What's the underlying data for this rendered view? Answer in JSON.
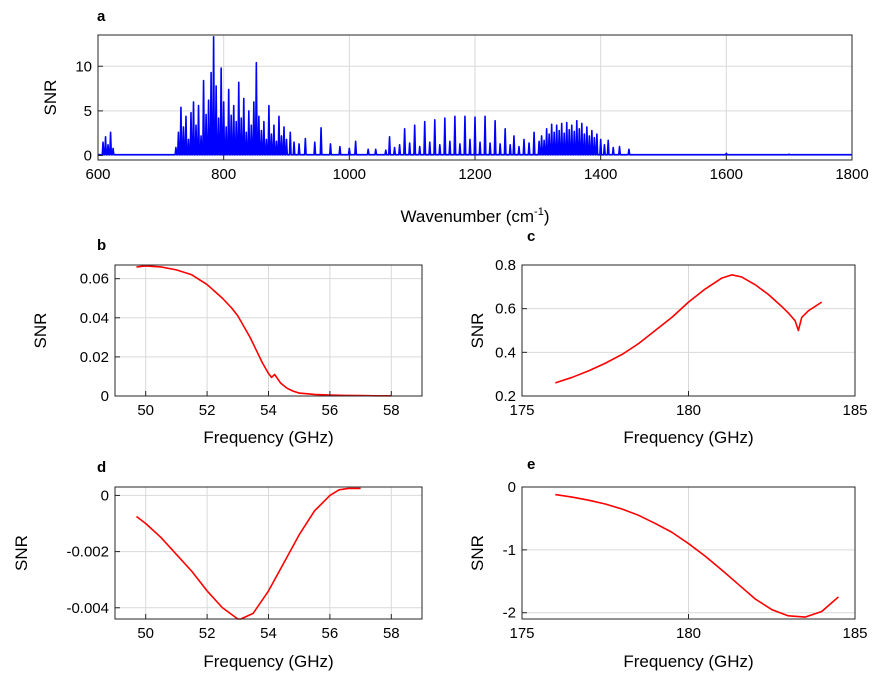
{
  "chart_data": [
    {
      "panel": "a",
      "type": "line",
      "xlabel": "Wavenumber (cm",
      "xlabel_sup": "-1",
      "xlabel_end": ")",
      "ylabel": "SNR",
      "xlim": [
        600,
        1800
      ],
      "ylim": [
        -0.5,
        13.5
      ],
      "xticks": [
        600,
        800,
        1000,
        1200,
        1400,
        1600,
        1800
      ],
      "yticks": [
        0,
        5,
        10
      ],
      "grid": true,
      "color": "#0000ff",
      "baseline": 0.1,
      "peaks": [
        [
          608,
          1.5
        ],
        [
          612,
          2.1
        ],
        [
          616,
          1.2
        ],
        [
          620,
          2.6
        ],
        [
          624,
          0.8
        ],
        [
          724,
          0.9
        ],
        [
          728,
          2.6
        ],
        [
          732,
          5.4
        ],
        [
          736,
          3.2
        ],
        [
          740,
          4.4
        ],
        [
          744,
          1.8
        ],
        [
          748,
          4.8
        ],
        [
          752,
          6.0
        ],
        [
          756,
          3.4
        ],
        [
          760,
          5.6
        ],
        [
          764,
          2.2
        ],
        [
          768,
          8.4
        ],
        [
          772,
          4.6
        ],
        [
          776,
          6.2
        ],
        [
          780,
          9.3
        ],
        [
          784,
          13.3
        ],
        [
          788,
          7.8
        ],
        [
          792,
          4.2
        ],
        [
          796,
          9.8
        ],
        [
          800,
          6.0
        ],
        [
          804,
          3.2
        ],
        [
          808,
          7.4
        ],
        [
          812,
          4.5
        ],
        [
          816,
          5.6
        ],
        [
          820,
          3.8
        ],
        [
          824,
          8.2
        ],
        [
          828,
          4.2
        ],
        [
          832,
          6.4
        ],
        [
          836,
          2.6
        ],
        [
          840,
          5.0
        ],
        [
          844,
          3.4
        ],
        [
          848,
          6.0
        ],
        [
          852,
          10.4
        ],
        [
          856,
          4.4
        ],
        [
          860,
          2.8
        ],
        [
          864,
          3.8
        ],
        [
          868,
          1.8
        ],
        [
          872,
          5.6
        ],
        [
          876,
          2.4
        ],
        [
          880,
          3.4
        ],
        [
          884,
          1.6
        ],
        [
          888,
          4.4
        ],
        [
          892,
          2.2
        ],
        [
          896,
          3.2
        ],
        [
          900,
          1.8
        ],
        [
          906,
          2.6
        ],
        [
          912,
          1.5
        ],
        [
          920,
          1.3
        ],
        [
          930,
          1.9
        ],
        [
          945,
          1.5
        ],
        [
          955,
          3.1
        ],
        [
          970,
          1.3
        ],
        [
          985,
          1.0
        ],
        [
          1000,
          0.8
        ],
        [
          1010,
          1.6
        ],
        [
          1030,
          0.7
        ],
        [
          1042,
          0.7
        ],
        [
          1058,
          0.6
        ],
        [
          1064,
          2.1
        ],
        [
          1072,
          0.9
        ],
        [
          1080,
          1.2
        ],
        [
          1088,
          3.0
        ],
        [
          1096,
          1.4
        ],
        [
          1104,
          3.4
        ],
        [
          1112,
          1.0
        ],
        [
          1120,
          3.8
        ],
        [
          1128,
          1.5
        ],
        [
          1136,
          4.0
        ],
        [
          1144,
          1.2
        ],
        [
          1152,
          4.2
        ],
        [
          1160,
          1.6
        ],
        [
          1168,
          4.4
        ],
        [
          1176,
          1.3
        ],
        [
          1184,
          4.4
        ],
        [
          1192,
          1.8
        ],
        [
          1200,
          4.3
        ],
        [
          1208,
          1.5
        ],
        [
          1216,
          4.4
        ],
        [
          1224,
          1.4
        ],
        [
          1232,
          3.9
        ],
        [
          1240,
          1.3
        ],
        [
          1248,
          3.0
        ],
        [
          1256,
          1.2
        ],
        [
          1262,
          2.2
        ],
        [
          1270,
          1.0
        ],
        [
          1278,
          1.8
        ],
        [
          1286,
          1.4
        ],
        [
          1294,
          2.6
        ],
        [
          1302,
          1.6
        ],
        [
          1306,
          2.2
        ],
        [
          1310,
          1.7
        ],
        [
          1314,
          3.0
        ],
        [
          1318,
          2.4
        ],
        [
          1322,
          3.5
        ],
        [
          1326,
          2.6
        ],
        [
          1330,
          3.4
        ],
        [
          1334,
          2.8
        ],
        [
          1338,
          3.6
        ],
        [
          1342,
          2.5
        ],
        [
          1346,
          3.7
        ],
        [
          1350,
          2.9
        ],
        [
          1354,
          3.4
        ],
        [
          1358,
          2.7
        ],
        [
          1362,
          3.9
        ],
        [
          1366,
          3.0
        ],
        [
          1370,
          3.6
        ],
        [
          1374,
          2.4
        ],
        [
          1378,
          3.2
        ],
        [
          1382,
          2.2
        ],
        [
          1386,
          2.8
        ],
        [
          1390,
          2.0
        ],
        [
          1394,
          2.4
        ],
        [
          1400,
          1.8
        ],
        [
          1406,
          1.2
        ],
        [
          1412,
          1.7
        ],
        [
          1420,
          0.9
        ],
        [
          1430,
          1.0
        ],
        [
          1445,
          0.7
        ],
        [
          1600,
          0.25
        ],
        [
          1700,
          0.15
        ]
      ]
    },
    {
      "panel": "b",
      "type": "line",
      "xlabel": "Frequency (GHz)",
      "ylabel": "SNR",
      "xlim": [
        49,
        59
      ],
      "ylim": [
        0,
        0.067
      ],
      "xticks": [
        50,
        52,
        54,
        56,
        58
      ],
      "yticks": [
        0,
        0.02,
        0.04,
        0.06
      ],
      "ytick_labels": [
        "0",
        "0.02",
        "0.04",
        "0.06"
      ],
      "grid": true,
      "color": "#ff0000",
      "x": [
        49.7,
        50.0,
        50.5,
        51.0,
        51.5,
        52.0,
        52.5,
        52.8,
        53.0,
        53.2,
        53.4,
        53.6,
        53.8,
        54.0,
        54.1,
        54.2,
        54.4,
        54.6,
        54.8,
        55.0,
        55.5,
        56.0,
        56.5,
        57.0,
        57.5,
        58.0
      ],
      "y": [
        0.066,
        0.0665,
        0.066,
        0.0645,
        0.062,
        0.057,
        0.05,
        0.045,
        0.041,
        0.0355,
        0.03,
        0.0235,
        0.017,
        0.0115,
        0.0095,
        0.011,
        0.0065,
        0.004,
        0.0025,
        0.0015,
        0.0008,
        0.0005,
        0.0003,
        0.0002,
        0.0001,
        0.0001
      ]
    },
    {
      "panel": "c",
      "type": "line",
      "xlabel": "Frequency (GHz)",
      "ylabel": "SNR",
      "xlim": [
        175,
        185
      ],
      "ylim": [
        0.2,
        0.8
      ],
      "xticks": [
        175,
        180,
        185
      ],
      "yticks": [
        0.2,
        0.4,
        0.6,
        0.8
      ],
      "grid": true,
      "color": "#ff0000",
      "x": [
        176.0,
        176.5,
        177.0,
        177.5,
        178.0,
        178.5,
        179.0,
        179.5,
        180.0,
        180.5,
        181.0,
        181.3,
        181.6,
        182.0,
        182.4,
        182.8,
        183.0,
        183.2,
        183.3,
        183.4,
        183.6,
        184.0
      ],
      "y": [
        0.26,
        0.285,
        0.315,
        0.35,
        0.39,
        0.44,
        0.5,
        0.56,
        0.63,
        0.69,
        0.74,
        0.755,
        0.745,
        0.71,
        0.665,
        0.61,
        0.58,
        0.545,
        0.5,
        0.56,
        0.59,
        0.63
      ]
    },
    {
      "panel": "d",
      "type": "line",
      "xlabel": "Frequency (GHz)",
      "ylabel": "SNR",
      "xlim": [
        49,
        59
      ],
      "ylim": [
        -0.0044,
        0.0003
      ],
      "xticks": [
        50,
        52,
        54,
        56,
        58
      ],
      "yticks": [
        -0.004,
        -0.002,
        0
      ],
      "ytick_labels": [
        "-0.004",
        "-0.002",
        "0"
      ],
      "grid": true,
      "color": "#ff0000",
      "x": [
        49.7,
        50.0,
        50.5,
        51.0,
        51.5,
        52.0,
        52.5,
        53.0,
        53.1,
        53.5,
        54.0,
        54.5,
        55.0,
        55.5,
        56.0,
        56.3,
        56.6,
        57.0
      ],
      "y": [
        -0.00075,
        -0.001,
        -0.0015,
        -0.0021,
        -0.0027,
        -0.0034,
        -0.004,
        -0.0044,
        -0.0044,
        -0.0042,
        -0.0034,
        -0.0024,
        -0.0014,
        -0.00055,
        0.0,
        0.0002,
        0.00025,
        0.00025
      ]
    },
    {
      "panel": "e",
      "type": "line",
      "xlabel": "Frequency (GHz)",
      "ylabel": "SNR",
      "xlim": [
        175,
        185
      ],
      "ylim": [
        -2.1,
        0
      ],
      "xticks": [
        175,
        180,
        185
      ],
      "yticks": [
        -2,
        -1,
        0
      ],
      "grid": true,
      "color": "#ff0000",
      "x": [
        176.0,
        176.5,
        177.0,
        177.5,
        178.0,
        178.5,
        179.0,
        179.5,
        180.0,
        180.5,
        181.0,
        181.5,
        182.0,
        182.5,
        183.0,
        183.5,
        184.0,
        184.5
      ],
      "y": [
        -0.12,
        -0.16,
        -0.21,
        -0.27,
        -0.35,
        -0.45,
        -0.58,
        -0.72,
        -0.9,
        -1.1,
        -1.32,
        -1.55,
        -1.78,
        -1.95,
        -2.05,
        -2.07,
        -1.98,
        -1.75
      ]
    }
  ]
}
